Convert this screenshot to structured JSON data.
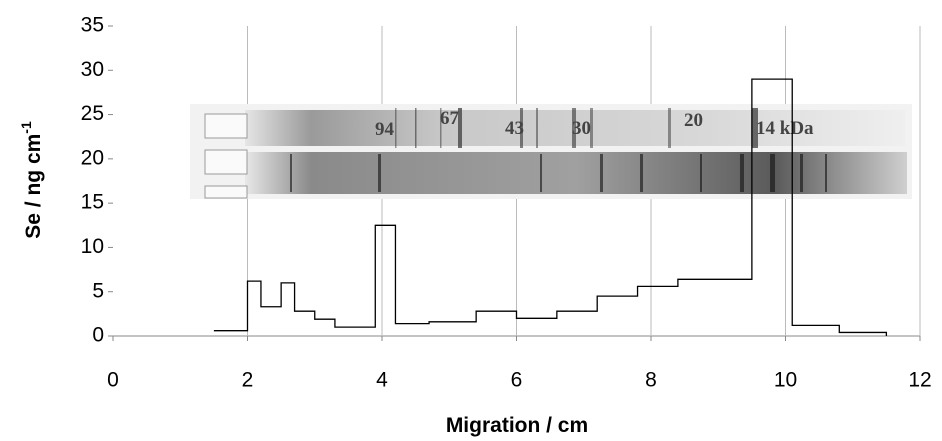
{
  "chart_data": {
    "type": "line",
    "step_outline": true,
    "x_label": "Migration / cm",
    "y_label": "Se  / ng cm",
    "y_label_superscript": "-1",
    "x": [
      1.5,
      2.0,
      2.0,
      2.2,
      2.2,
      2.5,
      2.5,
      2.7,
      2.7,
      3.0,
      3.0,
      3.3,
      3.3,
      3.9,
      3.9,
      4.2,
      4.2,
      4.7,
      4.7,
      5.4,
      5.4,
      6.0,
      6.0,
      6.6,
      6.6,
      7.2,
      7.2,
      7.8,
      7.8,
      8.4,
      8.4,
      9.5,
      9.5,
      10.1,
      10.1,
      10.8,
      10.8,
      11.5,
      11.5
    ],
    "values": [
      0.6,
      0.6,
      6.2,
      6.2,
      3.3,
      3.3,
      6.0,
      6.0,
      2.8,
      2.8,
      1.9,
      1.9,
      1.0,
      1.0,
      12.5,
      12.5,
      1.4,
      1.4,
      1.6,
      1.6,
      2.8,
      2.8,
      2.0,
      2.0,
      2.8,
      2.8,
      4.5,
      4.5,
      5.6,
      5.6,
      6.4,
      6.4,
      29.0,
      29.0,
      1.2,
      1.2,
      0.4,
      0.4,
      0
    ],
    "color": "#000000",
    "xlim": [
      0,
      12
    ],
    "xticks": [
      0,
      2,
      4,
      6,
      8,
      10,
      12
    ],
    "ylim": [
      0,
      35
    ],
    "yticks": [
      0,
      5,
      10,
      15,
      20,
      25,
      30,
      35
    ],
    "grid_x": true,
    "gel_labels": [
      "94",
      "67",
      "43",
      "30",
      "20",
      "14 kDa"
    ]
  }
}
